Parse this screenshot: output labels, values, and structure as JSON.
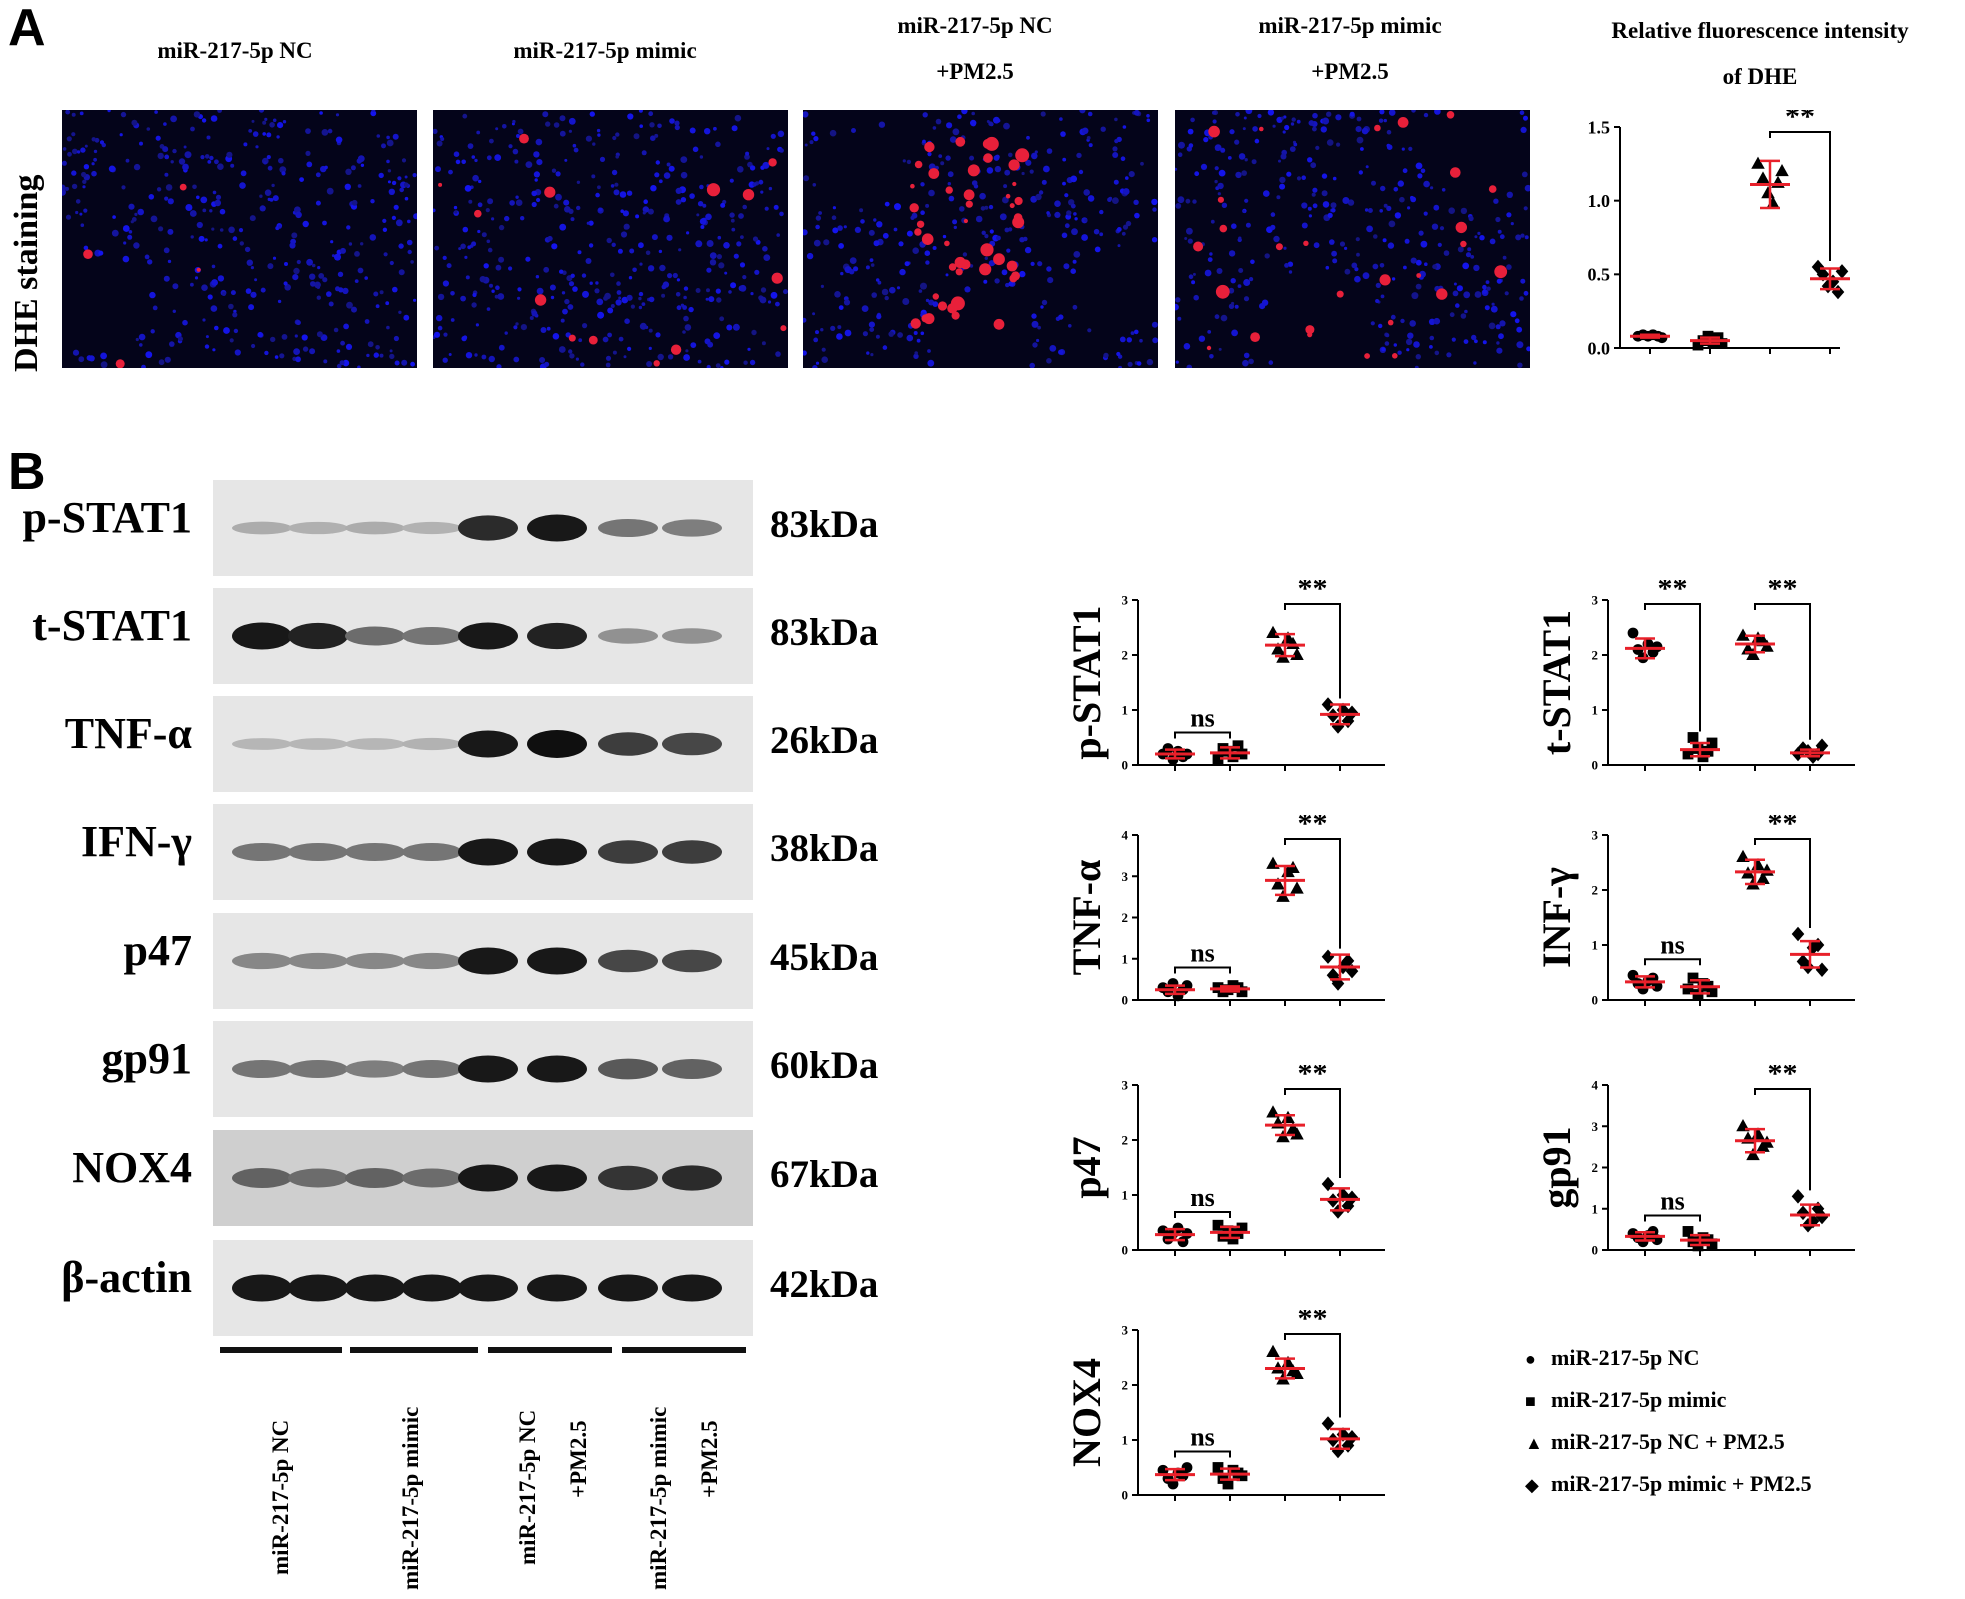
{
  "panels": {
    "a": "A",
    "b": "B"
  },
  "panel_a": {
    "row_label": "DHE staining",
    "column_titles": [
      {
        "line1": "miR-217-5p NC",
        "line2": ""
      },
      {
        "line1": "miR-217-5p mimic",
        "line2": ""
      },
      {
        "line1": "miR-217-5p NC",
        "line2": "+PM2.5"
      },
      {
        "line1": "miR-217-5p mimic",
        "line2": "+PM2.5"
      }
    ],
    "chart_title_line1": "Relative fluorescence intensity",
    "chart_title_line2": "of DHE"
  },
  "panel_b": {
    "blots": [
      {
        "label": "p-STAT1",
        "kda": "83kDa"
      },
      {
        "label": "t-STAT1",
        "kda": "83kDa"
      },
      {
        "label": "TNF-α",
        "kda": "26kDa"
      },
      {
        "label": "IFN-γ",
        "kda": "38kDa"
      },
      {
        "label": "p47",
        "kda": "45kDa"
      },
      {
        "label": "gp91",
        "kda": "60kDa"
      },
      {
        "label": "NOX4",
        "kda": "67kDa"
      },
      {
        "label": "β-actin",
        "kda": "42kDa"
      }
    ],
    "lane_groups": [
      {
        "line1": "miR-217-5p NC",
        "line2": ""
      },
      {
        "line1": "miR-217-5p mimic",
        "line2": ""
      },
      {
        "line1": "miR-217-5p NC",
        "line2": "+PM2.5"
      },
      {
        "line1": "miR-217-5p mimic",
        "line2": "+PM2.5"
      }
    ],
    "band_intensity": [
      [
        0.15,
        0.13,
        0.15,
        0.12,
        0.85,
        0.95,
        0.45,
        0.4
      ],
      [
        0.95,
        0.9,
        0.5,
        0.45,
        0.95,
        0.9,
        0.3,
        0.3
      ],
      [
        0.1,
        0.1,
        0.1,
        0.12,
        0.95,
        1.0,
        0.75,
        0.7
      ],
      [
        0.45,
        0.45,
        0.45,
        0.45,
        0.95,
        0.95,
        0.75,
        0.75
      ],
      [
        0.35,
        0.35,
        0.35,
        0.35,
        0.95,
        0.95,
        0.7,
        0.7
      ],
      [
        0.45,
        0.45,
        0.4,
        0.45,
        0.95,
        0.95,
        0.6,
        0.55
      ],
      [
        0.55,
        0.5,
        0.55,
        0.5,
        0.95,
        0.95,
        0.8,
        0.85
      ],
      [
        0.95,
        0.95,
        0.95,
        0.95,
        0.95,
        0.95,
        0.95,
        0.95
      ]
    ]
  },
  "legend": [
    {
      "marker": "●",
      "label": "miR-217-5p NC"
    },
    {
      "marker": "■",
      "label": "miR-217-5p mimic"
    },
    {
      "marker": "▲",
      "label": "miR-217-5p NC + PM2.5"
    },
    {
      "marker": "◆",
      "label": "miR-217-5p mimic + PM2.5"
    }
  ],
  "colors": {
    "mean_sd": "#e8202a",
    "points": "#000000",
    "micro_bg": "#04041a"
  },
  "chart_data": [
    {
      "id": "dhe",
      "type": "scatter",
      "title": "Relative fluorescence intensity of DHE",
      "ylabel": "",
      "ylim": [
        0,
        1.5
      ],
      "yticks": [
        "0.0",
        "0.5",
        "1.0",
        "1.5"
      ],
      "ytick_values": [
        0,
        0.5,
        1.0,
        1.5
      ],
      "series": [
        {
          "values": [
            0.08,
            0.09,
            0.08,
            0.09,
            0.08,
            0.07
          ],
          "mean": 0.08,
          "sd": 0.01
        },
        {
          "values": [
            0.02,
            0.05,
            0.08,
            0.04,
            0.07,
            0.03
          ],
          "mean": 0.05,
          "sd": 0.02
        },
        {
          "values": [
            1.25,
            1.15,
            1.05,
            0.98,
            1.12,
            1.2
          ],
          "mean": 1.11,
          "sd": 0.16
        },
        {
          "values": [
            0.55,
            0.5,
            0.42,
            0.45,
            0.38,
            0.52
          ],
          "mean": 0.47,
          "sd": 0.07
        }
      ],
      "annotations": [
        {
          "from": 2,
          "to": 3,
          "text": "**"
        }
      ]
    },
    {
      "id": "pstat1",
      "type": "scatter",
      "ylabel": "p-STAT1",
      "ylim": [
        0,
        3
      ],
      "yticks": [
        "0",
        "1",
        "2",
        "3"
      ],
      "ytick_values": [
        0,
        1,
        2,
        3
      ],
      "series": [
        {
          "values": [
            0.2,
            0.3,
            0.1,
            0.25,
            0.15,
            0.2
          ],
          "mean": 0.2,
          "sd": 0.08
        },
        {
          "values": [
            0.1,
            0.3,
            0.25,
            0.15,
            0.35,
            0.2
          ],
          "mean": 0.22,
          "sd": 0.1
        },
        {
          "values": [
            2.4,
            2.1,
            1.95,
            2.3,
            2.2,
            2.0
          ],
          "mean": 2.18,
          "sd": 0.2
        },
        {
          "values": [
            1.1,
            0.9,
            0.7,
            1.0,
            0.8,
            0.95
          ],
          "mean": 0.92,
          "sd": 0.18
        }
      ],
      "annotations": [
        {
          "from": 0,
          "to": 1,
          "text": "ns"
        },
        {
          "from": 2,
          "to": 3,
          "text": "**"
        }
      ]
    },
    {
      "id": "tstat1",
      "type": "scatter",
      "ylabel": "t-STAT1",
      "ylim": [
        0,
        3
      ],
      "yticks": [
        "0",
        "1",
        "2",
        "3"
      ],
      "ytick_values": [
        0,
        1,
        2,
        3
      ],
      "series": [
        {
          "values": [
            2.4,
            2.1,
            1.95,
            2.2,
            2.05,
            2.15
          ],
          "mean": 2.12,
          "sd": 0.18
        },
        {
          "values": [
            0.2,
            0.5,
            0.3,
            0.15,
            0.25,
            0.4
          ],
          "mean": 0.28,
          "sd": 0.12
        },
        {
          "values": [
            2.35,
            2.1,
            2.0,
            2.3,
            2.25,
            2.15
          ],
          "mean": 2.2,
          "sd": 0.15
        },
        {
          "values": [
            0.2,
            0.3,
            0.25,
            0.15,
            0.2,
            0.35
          ],
          "mean": 0.22,
          "sd": 0.06
        }
      ],
      "annotations": [
        {
          "from": 0,
          "to": 1,
          "text": "**"
        },
        {
          "from": 2,
          "to": 3,
          "text": "**"
        }
      ]
    },
    {
      "id": "tnfa",
      "type": "scatter",
      "ylabel": "TNF-α",
      "ylim": [
        0,
        4
      ],
      "yticks": [
        "0",
        "1",
        "2",
        "3",
        "4"
      ],
      "ytick_values": [
        0,
        1,
        2,
        3,
        4
      ],
      "series": [
        {
          "values": [
            0.3,
            0.2,
            0.4,
            0.1,
            0.25,
            0.35
          ],
          "mean": 0.25,
          "sd": 0.1
        },
        {
          "values": [
            0.3,
            0.2,
            0.25,
            0.35,
            0.3,
            0.2
          ],
          "mean": 0.27,
          "sd": 0.06
        },
        {
          "values": [
            3.3,
            2.8,
            2.5,
            3.1,
            3.2,
            2.7
          ],
          "mean": 2.9,
          "sd": 0.35
        },
        {
          "values": [
            1.05,
            0.6,
            0.4,
            0.8,
            0.95,
            0.7
          ],
          "mean": 0.8,
          "sd": 0.3
        }
      ],
      "annotations": [
        {
          "from": 0,
          "to": 1,
          "text": "ns"
        },
        {
          "from": 2,
          "to": 3,
          "text": "**"
        }
      ]
    },
    {
      "id": "infg",
      "type": "scatter",
      "ylabel": "INF-γ",
      "ylim": [
        0,
        3
      ],
      "yticks": [
        "0",
        "1",
        "2",
        "3"
      ],
      "ytick_values": [
        0,
        1,
        2,
        3
      ],
      "series": [
        {
          "values": [
            0.45,
            0.3,
            0.2,
            0.35,
            0.4,
            0.25
          ],
          "mean": 0.33,
          "sd": 0.1
        },
        {
          "values": [
            0.2,
            0.4,
            0.1,
            0.3,
            0.25,
            0.15
          ],
          "mean": 0.24,
          "sd": 0.12
        },
        {
          "values": [
            2.6,
            2.3,
            2.1,
            2.45,
            2.2,
            2.35
          ],
          "mean": 2.33,
          "sd": 0.22
        },
        {
          "values": [
            1.2,
            0.7,
            0.6,
            0.95,
            1.0,
            0.55
          ],
          "mean": 0.83,
          "sd": 0.24
        }
      ],
      "annotations": [
        {
          "from": 0,
          "to": 1,
          "text": "ns"
        },
        {
          "from": 2,
          "to": 3,
          "text": "**"
        }
      ]
    },
    {
      "id": "p47",
      "type": "scatter",
      "ylabel": "p47",
      "ylim": [
        0,
        3
      ],
      "yticks": [
        "0",
        "1",
        "2",
        "3"
      ],
      "ytick_values": [
        0,
        1,
        2,
        3
      ],
      "series": [
        {
          "values": [
            0.35,
            0.2,
            0.3,
            0.4,
            0.15,
            0.3
          ],
          "mean": 0.28,
          "sd": 0.1
        },
        {
          "values": [
            0.45,
            0.25,
            0.35,
            0.2,
            0.3,
            0.4
          ],
          "mean": 0.32,
          "sd": 0.1
        },
        {
          "values": [
            2.5,
            2.3,
            2.05,
            2.4,
            2.2,
            2.1
          ],
          "mean": 2.27,
          "sd": 0.18
        },
        {
          "values": [
            1.2,
            0.9,
            0.7,
            1.0,
            0.8,
            0.95
          ],
          "mean": 0.92,
          "sd": 0.2
        }
      ],
      "annotations": [
        {
          "from": 0,
          "to": 1,
          "text": "ns"
        },
        {
          "from": 2,
          "to": 3,
          "text": "**"
        }
      ]
    },
    {
      "id": "gp91",
      "type": "scatter",
      "ylabel": "gp91",
      "ylim": [
        0,
        4
      ],
      "yticks": [
        "0",
        "1",
        "2",
        "3",
        "4"
      ],
      "ytick_values": [
        0,
        1,
        2,
        3,
        4
      ],
      "series": [
        {
          "values": [
            0.4,
            0.3,
            0.2,
            0.35,
            0.45,
            0.25
          ],
          "mean": 0.33,
          "sd": 0.1
        },
        {
          "values": [
            0.45,
            0.2,
            0.1,
            0.3,
            0.25,
            0.15
          ],
          "mean": 0.24,
          "sd": 0.12
        },
        {
          "values": [
            3.0,
            2.7,
            2.3,
            2.8,
            2.5,
            2.6
          ],
          "mean": 2.65,
          "sd": 0.28
        },
        {
          "values": [
            1.3,
            0.9,
            0.6,
            0.7,
            1.0,
            0.8
          ],
          "mean": 0.85,
          "sd": 0.25
        }
      ],
      "annotations": [
        {
          "from": 0,
          "to": 1,
          "text": "ns"
        },
        {
          "from": 2,
          "to": 3,
          "text": "**"
        }
      ]
    },
    {
      "id": "nox4",
      "type": "scatter",
      "ylabel": "NOX4",
      "ylim": [
        0,
        3
      ],
      "yticks": [
        "0",
        "1",
        "2",
        "3"
      ],
      "ytick_values": [
        0,
        1,
        2,
        3
      ],
      "series": [
        {
          "values": [
            0.45,
            0.3,
            0.2,
            0.4,
            0.35,
            0.5
          ],
          "mean": 0.37,
          "sd": 0.1
        },
        {
          "values": [
            0.5,
            0.3,
            0.2,
            0.45,
            0.4,
            0.35
          ],
          "mean": 0.38,
          "sd": 0.1
        },
        {
          "values": [
            2.6,
            2.3,
            2.1,
            2.4,
            2.25,
            2.2
          ],
          "mean": 2.3,
          "sd": 0.18
        },
        {
          "values": [
            1.3,
            1.0,
            0.8,
            1.1,
            0.9,
            1.05
          ],
          "mean": 1.02,
          "sd": 0.18
        }
      ],
      "annotations": [
        {
          "from": 0,
          "to": 1,
          "text": "ns"
        },
        {
          "from": 2,
          "to": 3,
          "text": "**"
        }
      ]
    }
  ]
}
